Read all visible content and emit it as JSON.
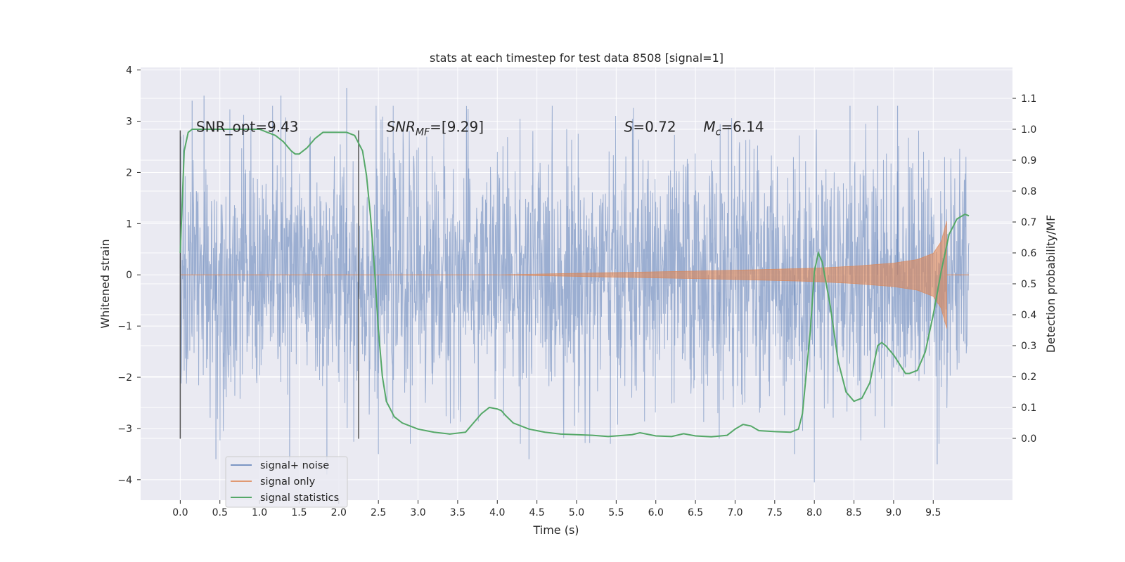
{
  "chart_data": {
    "type": "line",
    "title": "stats at each timestep for test data 8508 [signal=1]",
    "xlabel": "Time (s)",
    "ylabel": "Whitened strain",
    "ylabel_right": "Detection probability/MF",
    "xlim": [
      -0.5,
      10.5
    ],
    "ylim": [
      -4.4,
      4.05
    ],
    "ylim_right": [
      -0.2,
      1.2
    ],
    "x_ticks": [
      0.0,
      0.5,
      1.0,
      1.5,
      2.0,
      2.5,
      3.0,
      3.5,
      4.0,
      4.5,
      5.0,
      5.5,
      6.0,
      6.5,
      7.0,
      7.5,
      8.0,
      8.5,
      9.0,
      9.5
    ],
    "x_tick_labels": [
      "0.0",
      "0.5",
      "1.0",
      "1.5",
      "2.0",
      "2.5",
      "3.0",
      "3.5",
      "4.0",
      "4.5",
      "5.0",
      "5.5",
      "6.0",
      "6.5",
      "7.0",
      "7.5",
      "8.0",
      "8.5",
      "9.0",
      "9.5"
    ],
    "y_ticks": [
      -4,
      -3,
      -2,
      -1,
      0,
      1,
      2,
      3,
      4
    ],
    "y_tick_labels": [
      "−4",
      "−3",
      "−2",
      "−1",
      "0",
      "1",
      "2",
      "3",
      "4"
    ],
    "y_right_ticks": [
      0.0,
      0.1,
      0.2,
      0.3,
      0.4,
      0.5,
      0.6,
      0.7,
      0.8,
      0.9,
      1.0,
      1.1
    ],
    "y_right_tick_labels": [
      "0.0",
      "0.1",
      "0.2",
      "0.3",
      "0.4",
      "0.5",
      "0.6",
      "0.7",
      "0.8",
      "0.9",
      "1.0",
      "1.1"
    ],
    "grid": true,
    "legend": "lower-left",
    "background": "#eaeaf2",
    "annotations": [
      {
        "text": "SNR_opt=9.43",
        "x": 0.2,
        "y": 2.85
      },
      {
        "text": "SNR",
        "sub": "MF",
        "suffix": "=[9.29]",
        "x": 2.6,
        "y": 2.85,
        "italic_prefix": true
      },
      {
        "text": "S",
        "suffix": "=0.72",
        "x": 5.6,
        "y": 2.85,
        "italic_prefix": true
      },
      {
        "text": "M",
        "sub": "c",
        "suffix": "=6.14",
        "x": 6.6,
        "y": 2.85,
        "italic_prefix": true
      }
    ],
    "vertical_markers": [
      {
        "x": 0.0,
        "y_range": [
          -3.2,
          2.82
        ]
      },
      {
        "x": 2.25,
        "y_range": [
          -3.2,
          2.82
        ]
      }
    ],
    "series": [
      {
        "name": "signal+ noise",
        "color": "#4c72b0",
        "opacity": 0.5,
        "x_range": [
          0.0,
          9.95
        ],
        "envelope_typical": 1.4,
        "peak_values": [
          {
            "x": 0.15,
            "y": 3.4
          },
          {
            "x": 0.3,
            "y": 3.5
          },
          {
            "x": 0.45,
            "y": -3.6
          },
          {
            "x": 1.27,
            "y": 3.5
          },
          {
            "x": 1.38,
            "y": -3.7
          },
          {
            "x": 1.85,
            "y": -3.9
          },
          {
            "x": 2.1,
            "y": 3.65
          },
          {
            "x": 2.5,
            "y": -3.5
          },
          {
            "x": 4.4,
            "y": -3.6
          },
          {
            "x": 8.0,
            "y": -4.05
          },
          {
            "x": 8.45,
            "y": 3.3
          },
          {
            "x": 8.8,
            "y": 3.3
          },
          {
            "x": 9.05,
            "y": 3.3
          },
          {
            "x": 9.55,
            "y": -3.7
          },
          {
            "x": 7.75,
            "y": -3.5
          },
          {
            "x": 6.8,
            "y": -3.2
          }
        ]
      },
      {
        "name": "signal only",
        "color": "#dd8452",
        "opacity": 0.6,
        "chirp_start": 4.0,
        "chirp_end": 9.67,
        "amplitude_points": [
          [
            4.0,
            0.0
          ],
          [
            5.0,
            0.03
          ],
          [
            6.0,
            0.06
          ],
          [
            7.0,
            0.09
          ],
          [
            8.0,
            0.13
          ],
          [
            8.5,
            0.17
          ],
          [
            9.0,
            0.23
          ],
          [
            9.3,
            0.3
          ],
          [
            9.5,
            0.42
          ],
          [
            9.6,
            0.65
          ],
          [
            9.67,
            1.05
          ]
        ]
      },
      {
        "name": "signal statistics",
        "color": "#55a868",
        "axis": "right",
        "x": [
          0.0,
          0.05,
          0.1,
          0.15,
          0.2,
          0.3,
          0.5,
          0.8,
          1.0,
          1.1,
          1.2,
          1.3,
          1.4,
          1.45,
          1.5,
          1.6,
          1.7,
          1.8,
          1.9,
          2.0,
          2.1,
          2.2,
          2.3,
          2.35,
          2.4,
          2.45,
          2.5,
          2.55,
          2.6,
          2.7,
          2.8,
          2.9,
          3.0,
          3.2,
          3.4,
          3.6,
          3.7,
          3.8,
          3.9,
          4.0,
          4.05,
          4.1,
          4.2,
          4.4,
          4.6,
          4.8,
          5.0,
          5.2,
          5.4,
          5.6,
          5.7,
          5.8,
          6.0,
          6.2,
          6.35,
          6.5,
          6.7,
          6.9,
          7.0,
          7.1,
          7.2,
          7.3,
          7.5,
          7.7,
          7.8,
          7.85,
          7.95,
          8.0,
          8.05,
          8.1,
          8.2,
          8.3,
          8.4,
          8.5,
          8.6,
          8.7,
          8.8,
          8.85,
          8.9,
          9.0,
          9.1,
          9.15,
          9.2,
          9.3,
          9.4,
          9.5,
          9.6,
          9.7,
          9.8,
          9.9,
          9.95
        ],
        "values": [
          0.6,
          0.93,
          0.99,
          1.0,
          1.0,
          1.0,
          1.0,
          1.0,
          1.0,
          0.99,
          0.98,
          0.96,
          0.93,
          0.92,
          0.92,
          0.94,
          0.97,
          0.99,
          0.99,
          0.99,
          0.99,
          0.98,
          0.93,
          0.85,
          0.72,
          0.55,
          0.35,
          0.2,
          0.12,
          0.07,
          0.05,
          0.04,
          0.03,
          0.02,
          0.014,
          0.02,
          0.05,
          0.08,
          0.1,
          0.095,
          0.09,
          0.075,
          0.05,
          0.03,
          0.02,
          0.014,
          0.012,
          0.01,
          0.006,
          0.01,
          0.012,
          0.018,
          0.008,
          0.006,
          0.015,
          0.008,
          0.005,
          0.01,
          0.03,
          0.045,
          0.04,
          0.025,
          0.022,
          0.02,
          0.03,
          0.08,
          0.35,
          0.54,
          0.6,
          0.57,
          0.43,
          0.25,
          0.15,
          0.12,
          0.13,
          0.18,
          0.3,
          0.31,
          0.3,
          0.27,
          0.23,
          0.21,
          0.21,
          0.22,
          0.28,
          0.4,
          0.54,
          0.66,
          0.71,
          0.725,
          0.72
        ]
      }
    ]
  }
}
